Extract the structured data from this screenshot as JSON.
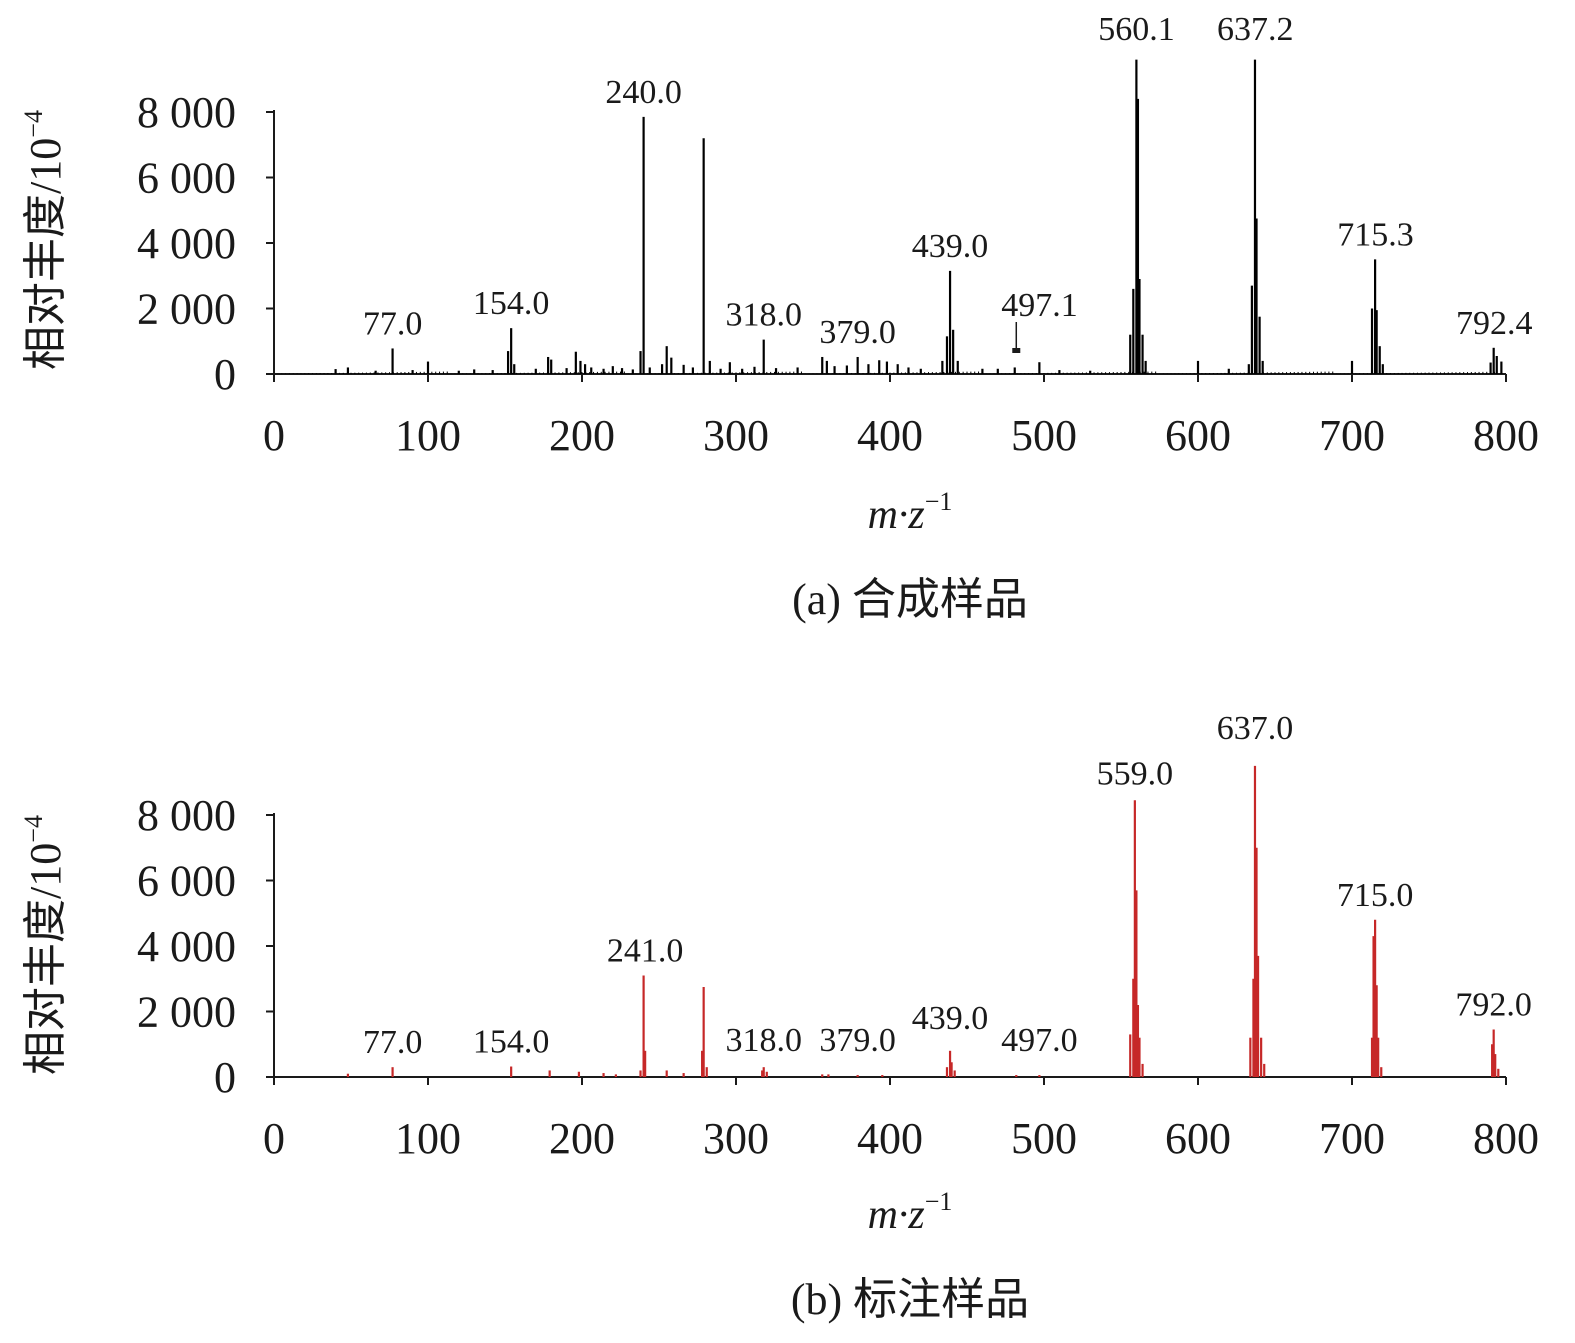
{
  "charts": [
    {
      "caption": "(a) 合成样品",
      "ylabel_text": "相对丰度/10",
      "ylabel_exp": "−4",
      "xlabel_text": "m·z",
      "xlabel_exp": "−1"
    },
    {
      "caption": "(b) 标注样品",
      "ylabel_text": "相对丰度/10",
      "ylabel_exp": "−4",
      "xlabel_text": "m·z",
      "xlabel_exp": "−1"
    }
  ],
  "chart_data": [
    {
      "type": "bar",
      "title": "(a) 合成样品",
      "xlabel": "m·z⁻¹",
      "ylabel": "相对丰度/10⁻⁴",
      "xlim": [
        0,
        800
      ],
      "ylim": [
        0,
        8000
      ],
      "x_ticks": [
        0,
        100,
        200,
        300,
        400,
        500,
        600,
        700,
        800
      ],
      "x_tick_labels": [
        "0",
        "100",
        "200",
        "300",
        "400",
        "500",
        "600",
        "700",
        "800"
      ],
      "y_ticks": [
        0,
        2000,
        4000,
        6000,
        8000
      ],
      "y_tick_labels": [
        "0",
        "2 000",
        "4 000",
        "6 000",
        "8 000"
      ],
      "color": "#000000",
      "peaks": [
        {
          "x": 40,
          "y": 150
        },
        {
          "x": 48,
          "y": 200
        },
        {
          "x": 66,
          "y": 100
        },
        {
          "x": 77,
          "y": 780
        },
        {
          "x": 90,
          "y": 120
        },
        {
          "x": 100,
          "y": 380
        },
        {
          "x": 120,
          "y": 100
        },
        {
          "x": 130,
          "y": 140
        },
        {
          "x": 142,
          "y": 120
        },
        {
          "x": 152,
          "y": 700
        },
        {
          "x": 154,
          "y": 1400
        },
        {
          "x": 156,
          "y": 300
        },
        {
          "x": 170,
          "y": 160
        },
        {
          "x": 178,
          "y": 520
        },
        {
          "x": 180,
          "y": 440
        },
        {
          "x": 190,
          "y": 180
        },
        {
          "x": 196,
          "y": 680
        },
        {
          "x": 199,
          "y": 400
        },
        {
          "x": 202,
          "y": 300
        },
        {
          "x": 206,
          "y": 200
        },
        {
          "x": 214,
          "y": 160
        },
        {
          "x": 220,
          "y": 240
        },
        {
          "x": 226,
          "y": 180
        },
        {
          "x": 233,
          "y": 140
        },
        {
          "x": 238,
          "y": 700
        },
        {
          "x": 240,
          "y": 7850
        },
        {
          "x": 244,
          "y": 200
        },
        {
          "x": 252,
          "y": 300
        },
        {
          "x": 255,
          "y": 850
        },
        {
          "x": 258,
          "y": 500
        },
        {
          "x": 266,
          "y": 280
        },
        {
          "x": 272,
          "y": 200
        },
        {
          "x": 279,
          "y": 7200
        },
        {
          "x": 283,
          "y": 400
        },
        {
          "x": 290,
          "y": 160
        },
        {
          "x": 296,
          "y": 360
        },
        {
          "x": 304,
          "y": 160
        },
        {
          "x": 312,
          "y": 220
        },
        {
          "x": 318,
          "y": 1050
        },
        {
          "x": 326,
          "y": 180
        },
        {
          "x": 340,
          "y": 200
        },
        {
          "x": 356,
          "y": 520
        },
        {
          "x": 359,
          "y": 400
        },
        {
          "x": 364,
          "y": 240
        },
        {
          "x": 372,
          "y": 260
        },
        {
          "x": 379,
          "y": 520
        },
        {
          "x": 386,
          "y": 300
        },
        {
          "x": 393,
          "y": 420
        },
        {
          "x": 398,
          "y": 380
        },
        {
          "x": 405,
          "y": 300
        },
        {
          "x": 412,
          "y": 200
        },
        {
          "x": 420,
          "y": 160
        },
        {
          "x": 434,
          "y": 400
        },
        {
          "x": 437,
          "y": 1150
        },
        {
          "x": 439,
          "y": 3150
        },
        {
          "x": 441,
          "y": 1350
        },
        {
          "x": 444,
          "y": 400
        },
        {
          "x": 460,
          "y": 160
        },
        {
          "x": 470,
          "y": 160
        },
        {
          "x": 481,
          "y": 200
        },
        {
          "x": 497,
          "y": 360
        },
        {
          "x": 510,
          "y": 120
        },
        {
          "x": 530,
          "y": 100
        },
        {
          "x": 556,
          "y": 1200
        },
        {
          "x": 558,
          "y": 2600
        },
        {
          "x": 560,
          "y": 9600
        },
        {
          "x": 561,
          "y": 8400
        },
        {
          "x": 562,
          "y": 2900
        },
        {
          "x": 564,
          "y": 1200
        },
        {
          "x": 566,
          "y": 400
        },
        {
          "x": 600,
          "y": 400
        },
        {
          "x": 620,
          "y": 160
        },
        {
          "x": 633,
          "y": 300
        },
        {
          "x": 635,
          "y": 2700
        },
        {
          "x": 637,
          "y": 9600
        },
        {
          "x": 638,
          "y": 4750
        },
        {
          "x": 640,
          "y": 1750
        },
        {
          "x": 642,
          "y": 400
        },
        {
          "x": 700,
          "y": 400
        },
        {
          "x": 713,
          "y": 2000
        },
        {
          "x": 715,
          "y": 3500
        },
        {
          "x": 716,
          "y": 1950
        },
        {
          "x": 718,
          "y": 850
        },
        {
          "x": 720,
          "y": 300
        },
        {
          "x": 790,
          "y": 350
        },
        {
          "x": 792,
          "y": 800
        },
        {
          "x": 794,
          "y": 550
        },
        {
          "x": 797,
          "y": 380
        }
      ],
      "annotations": [
        {
          "x": 77.0,
          "label": "77.0"
        },
        {
          "x": 154.0,
          "label": "154.0"
        },
        {
          "x": 240.0,
          "label": "240.0"
        },
        {
          "x": 318.0,
          "label": "318.0"
        },
        {
          "x": 379.0,
          "label": "379.0"
        },
        {
          "x": 439.0,
          "label": "439.0"
        },
        {
          "x": 497.1,
          "label": "497.1"
        },
        {
          "x": 560.1,
          "label": "560.1"
        },
        {
          "x": 637.2,
          "label": "637.2"
        },
        {
          "x": 715.3,
          "label": "715.3"
        },
        {
          "x": 792.4,
          "label": "792.4"
        }
      ]
    },
    {
      "type": "bar",
      "title": "(b) 标注样品",
      "xlabel": "m·z⁻¹",
      "ylabel": "相对丰度/10⁻⁴",
      "xlim": [
        0,
        800
      ],
      "ylim": [
        0,
        8000
      ],
      "x_ticks": [
        0,
        100,
        200,
        300,
        400,
        500,
        600,
        700,
        800
      ],
      "x_tick_labels": [
        "0",
        "100",
        "200",
        "300",
        "400",
        "500",
        "600",
        "700",
        "800"
      ],
      "y_ticks": [
        0,
        2000,
        4000,
        6000,
        8000
      ],
      "y_tick_labels": [
        "0",
        "2 000",
        "4 000",
        "6 000",
        "8 000"
      ],
      "color": "#c62828",
      "peaks": [
        {
          "x": 48,
          "y": 100
        },
        {
          "x": 77,
          "y": 300
        },
        {
          "x": 154,
          "y": 320
        },
        {
          "x": 179,
          "y": 200
        },
        {
          "x": 198,
          "y": 160
        },
        {
          "x": 214,
          "y": 120
        },
        {
          "x": 222,
          "y": 80
        },
        {
          "x": 238,
          "y": 200
        },
        {
          "x": 240,
          "y": 3100
        },
        {
          "x": 241,
          "y": 800
        },
        {
          "x": 255,
          "y": 200
        },
        {
          "x": 266,
          "y": 120
        },
        {
          "x": 278,
          "y": 800
        },
        {
          "x": 279,
          "y": 2750
        },
        {
          "x": 281,
          "y": 300
        },
        {
          "x": 317,
          "y": 200
        },
        {
          "x": 318,
          "y": 300
        },
        {
          "x": 320,
          "y": 160
        },
        {
          "x": 356,
          "y": 80
        },
        {
          "x": 360,
          "y": 80
        },
        {
          "x": 379,
          "y": 60
        },
        {
          "x": 395,
          "y": 60
        },
        {
          "x": 437,
          "y": 300
        },
        {
          "x": 439,
          "y": 800
        },
        {
          "x": 440,
          "y": 450
        },
        {
          "x": 442,
          "y": 200
        },
        {
          "x": 482,
          "y": 60
        },
        {
          "x": 497,
          "y": 60
        },
        {
          "x": 556,
          "y": 1300
        },
        {
          "x": 558,
          "y": 3000
        },
        {
          "x": 559,
          "y": 8450
        },
        {
          "x": 560,
          "y": 5700
        },
        {
          "x": 561,
          "y": 2200
        },
        {
          "x": 562,
          "y": 1200
        },
        {
          "x": 564,
          "y": 400
        },
        {
          "x": 634,
          "y": 1200
        },
        {
          "x": 636,
          "y": 3000
        },
        {
          "x": 637,
          "y": 9500
        },
        {
          "x": 638,
          "y": 7000
        },
        {
          "x": 639,
          "y": 3700
        },
        {
          "x": 641,
          "y": 1200
        },
        {
          "x": 643,
          "y": 400
        },
        {
          "x": 713,
          "y": 1200
        },
        {
          "x": 714,
          "y": 4300
        },
        {
          "x": 715,
          "y": 4800
        },
        {
          "x": 716,
          "y": 2800
        },
        {
          "x": 717,
          "y": 1200
        },
        {
          "x": 719,
          "y": 300
        },
        {
          "x": 791,
          "y": 1000
        },
        {
          "x": 792,
          "y": 1450
        },
        {
          "x": 793,
          "y": 700
        },
        {
          "x": 795,
          "y": 250
        }
      ],
      "annotations": [
        {
          "x": 77.0,
          "label": "77.0"
        },
        {
          "x": 154.0,
          "label": "154.0"
        },
        {
          "x": 241.0,
          "label": "241.0"
        },
        {
          "x": 318.0,
          "label": "318.0"
        },
        {
          "x": 379.0,
          "label": "379.0"
        },
        {
          "x": 439.0,
          "label": "439.0"
        },
        {
          "x": 497.0,
          "label": "497.0"
        },
        {
          "x": 559.0,
          "label": "559.0"
        },
        {
          "x": 637.0,
          "label": "637.0"
        },
        {
          "x": 715.0,
          "label": "715.0"
        },
        {
          "x": 792.0,
          "label": "792.0"
        }
      ]
    }
  ]
}
